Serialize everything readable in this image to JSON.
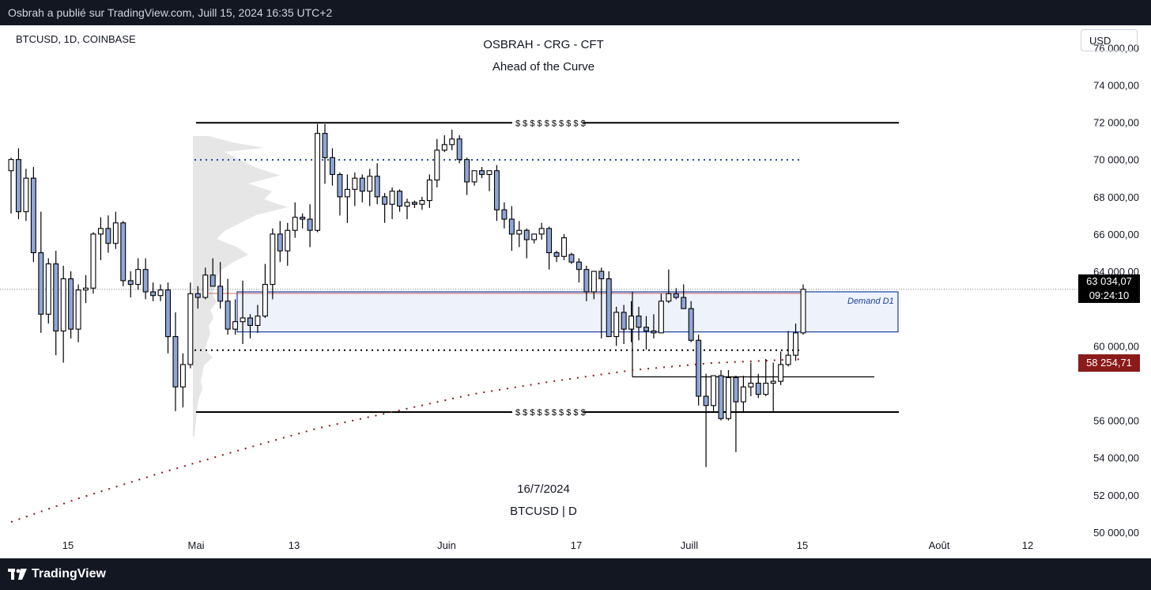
{
  "header": {
    "publish_text": "Osbrah a publié sur TradingView.com, Juill 15, 2024 16:35 UTC+2"
  },
  "chart": {
    "symbol_info": "BTCUSD, 1D, COINBASE",
    "title_line1": "OSBRAH - CRG - CFT",
    "title_line2": "Ahead of the Curve",
    "watermark_date": "16/7/2024",
    "watermark_symbol": "BTCUSD | D",
    "currency_button": "USD",
    "demand_label": "Demand D1",
    "liquidity_marker": "$ $ $ $ $ $ $ $ $ $",
    "current_price": "63 034,07",
    "countdown": "09:24:10",
    "marked_price": "58 254,71"
  },
  "colors": {
    "bull": "#ffffff",
    "bear": "#8fa6d6",
    "outline": "#000000",
    "demand_border": "#1b3fa0",
    "demand_fill": "#eef2fb",
    "red_dots": "#8b1a1a",
    "blue_dots": "#1b3fa0",
    "marked": "#8b1a1a"
  },
  "footer": {
    "brand": "TradingView"
  },
  "chart_data": {
    "type": "candlestick",
    "y_ticks": [
      "76 000,00",
      "74 000,00",
      "72 000,00",
      "70 000,00",
      "68 000,00",
      "66 000,00",
      "64 000,00",
      "60 000,00",
      "56 000,00",
      "54 000,00",
      "52 000,00",
      "50 000,00"
    ],
    "x_ticks": [
      "15",
      "Mai",
      "13",
      "Juin",
      "17",
      "Juill",
      "15",
      "Août",
      "12"
    ],
    "ylim": [
      48600,
      77200
    ],
    "candles": [
      [
        69400,
        70100,
        67100,
        70000
      ],
      [
        70000,
        70600,
        66800,
        67200
      ],
      [
        67200,
        69500,
        66700,
        69000
      ],
      [
        69000,
        69600,
        64500,
        65000
      ],
      [
        65000,
        67200,
        60700,
        61700
      ],
      [
        61700,
        64700,
        61200,
        64400
      ],
      [
        64400,
        65100,
        59500,
        60800
      ],
      [
        60800,
        64300,
        59100,
        63600
      ],
      [
        63600,
        64000,
        60400,
        60900
      ],
      [
        60900,
        63300,
        60200,
        63000
      ],
      [
        63000,
        63800,
        62300,
        63100
      ],
      [
        63100,
        66100,
        62800,
        66000
      ],
      [
        66000,
        66900,
        64600,
        66300
      ],
      [
        66300,
        67000,
        65000,
        65500
      ],
      [
        65500,
        67200,
        65200,
        66600
      ],
      [
        66600,
        66700,
        63200,
        63500
      ],
      [
        63500,
        64000,
        62600,
        63300
      ],
      [
        63300,
        64700,
        63000,
        64100
      ],
      [
        64100,
        64700,
        62500,
        62900
      ],
      [
        62900,
        63400,
        62400,
        62700
      ],
      [
        62700,
        63300,
        62400,
        63000
      ],
      [
        63000,
        63400,
        59600,
        60500
      ],
      [
        60500,
        61800,
        56500,
        57800
      ],
      [
        57800,
        59600,
        56700,
        59000
      ],
      [
        59000,
        63400,
        58800,
        62800
      ],
      [
        62800,
        63200,
        62000,
        62600
      ],
      [
        62600,
        64200,
        62500,
        63800
      ],
      [
        63800,
        64700,
        63200,
        63200
      ],
      [
        63200,
        64500,
        62000,
        62400
      ],
      [
        62400,
        63600,
        60600,
        60900
      ],
      [
        60900,
        62500,
        60600,
        61300
      ],
      [
        61300,
        63500,
        60100,
        61500
      ],
      [
        61500,
        61700,
        60400,
        61100
      ],
      [
        61100,
        62200,
        60700,
        61600
      ],
      [
        61600,
        64400,
        61500,
        63300
      ],
      [
        63300,
        66300,
        62500,
        66000
      ],
      [
        66000,
        66700,
        64500,
        65100
      ],
      [
        65100,
        66600,
        64300,
        66200
      ],
      [
        66200,
        67700,
        65800,
        66900
      ],
      [
        66900,
        67100,
        66300,
        66800
      ],
      [
        66800,
        67600,
        65300,
        66200
      ],
      [
        66200,
        71900,
        66100,
        71400
      ],
      [
        71400,
        71900,
        68700,
        70100
      ],
      [
        70100,
        70600,
        68600,
        69200
      ],
      [
        69200,
        69300,
        67000,
        68000
      ],
      [
        68000,
        69200,
        66600,
        68400
      ],
      [
        68400,
        69300,
        67500,
        69000
      ],
      [
        69000,
        69200,
        67700,
        68300
      ],
      [
        68300,
        69500,
        67500,
        69100
      ],
      [
        69100,
        69800,
        67600,
        68000
      ],
      [
        68000,
        68200,
        66600,
        67600
      ],
      [
        67600,
        68500,
        66800,
        68300
      ],
      [
        68300,
        68400,
        67200,
        67500
      ],
      [
        67500,
        67900,
        66800,
        67700
      ],
      [
        67700,
        67800,
        67400,
        67600
      ],
      [
        67600,
        68000,
        67300,
        67800
      ],
      [
        67800,
        69200,
        67400,
        68900
      ],
      [
        68900,
        71100,
        68500,
        70500
      ],
      [
        70500,
        71300,
        70400,
        70800
      ],
      [
        70800,
        71600,
        70500,
        71100
      ],
      [
        71100,
        71300,
        69800,
        70000
      ],
      [
        70000,
        70100,
        68100,
        68800
      ],
      [
        68800,
        69300,
        68600,
        69400
      ],
      [
        69400,
        69600,
        69000,
        69200
      ],
      [
        69200,
        69400,
        68300,
        69400
      ],
      [
        69400,
        69700,
        66700,
        67300
      ],
      [
        67300,
        67700,
        66300,
        66800
      ],
      [
        66800,
        67500,
        65100,
        66000
      ],
      [
        66000,
        66700,
        65300,
        66200
      ],
      [
        66200,
        66300,
        64700,
        65700
      ],
      [
        65700,
        65800,
        65500,
        66000
      ],
      [
        66000,
        66600,
        65700,
        66300
      ],
      [
        66300,
        66400,
        64100,
        65000
      ],
      [
        65000,
        65100,
        64500,
        64800
      ],
      [
        64800,
        66000,
        64600,
        65800
      ],
      [
        64900,
        65000,
        64400,
        64500
      ],
      [
        64500,
        64700,
        63400,
        64100
      ],
      [
        64100,
        64300,
        62400,
        62900
      ],
      [
        62900,
        64000,
        62500,
        64000
      ],
      [
        64000,
        64200,
        60400,
        63600
      ],
      [
        63600,
        64000,
        60500,
        60500
      ],
      [
        60500,
        62100,
        60000,
        61800
      ],
      [
        61800,
        62200,
        60100,
        60900
      ],
      [
        60900,
        62400,
        60200,
        61600
      ],
      [
        61600,
        62100,
        60300,
        61000
      ],
      [
        61000,
        61600,
        59800,
        60800
      ],
      [
        60800,
        61700,
        60400,
        60700
      ],
      [
        60700,
        62800,
        60700,
        62400
      ],
      [
        62400,
        64100,
        62300,
        62800
      ],
      [
        62800,
        63100,
        62500,
        62600
      ],
      [
        62600,
        63300,
        62000,
        62000
      ],
      [
        62000,
        62400,
        60200,
        60300
      ],
      [
        60300,
        60600,
        56800,
        57300
      ],
      [
        57300,
        58500,
        53500,
        56800
      ],
      [
        56800,
        58300,
        56500,
        58400
      ],
      [
        58400,
        58700,
        56000,
        56100
      ],
      [
        56100,
        58700,
        56000,
        58300
      ],
      [
        58300,
        58400,
        54300,
        57000
      ],
      [
        57000,
        58400,
        56400,
        57800
      ],
      [
        57800,
        59100,
        57300,
        58000
      ],
      [
        58000,
        58500,
        57200,
        57400
      ],
      [
        57400,
        59300,
        57300,
        58000
      ],
      [
        58000,
        59100,
        56500,
        58100
      ],
      [
        58100,
        59700,
        57900,
        59000
      ],
      [
        59000,
        60800,
        58900,
        59500
      ],
      [
        59500,
        61200,
        59200,
        60700
      ],
      [
        60700,
        63300,
        60600,
        63034
      ]
    ],
    "levels": {
      "top_liquidity": 71970,
      "bottom_liquidity": 56450,
      "demand_top": 62900,
      "demand_bottom": 60750,
      "blue_dotted": 69980,
      "black_dotted": 59770,
      "marked_line": 58254.71
    }
  }
}
